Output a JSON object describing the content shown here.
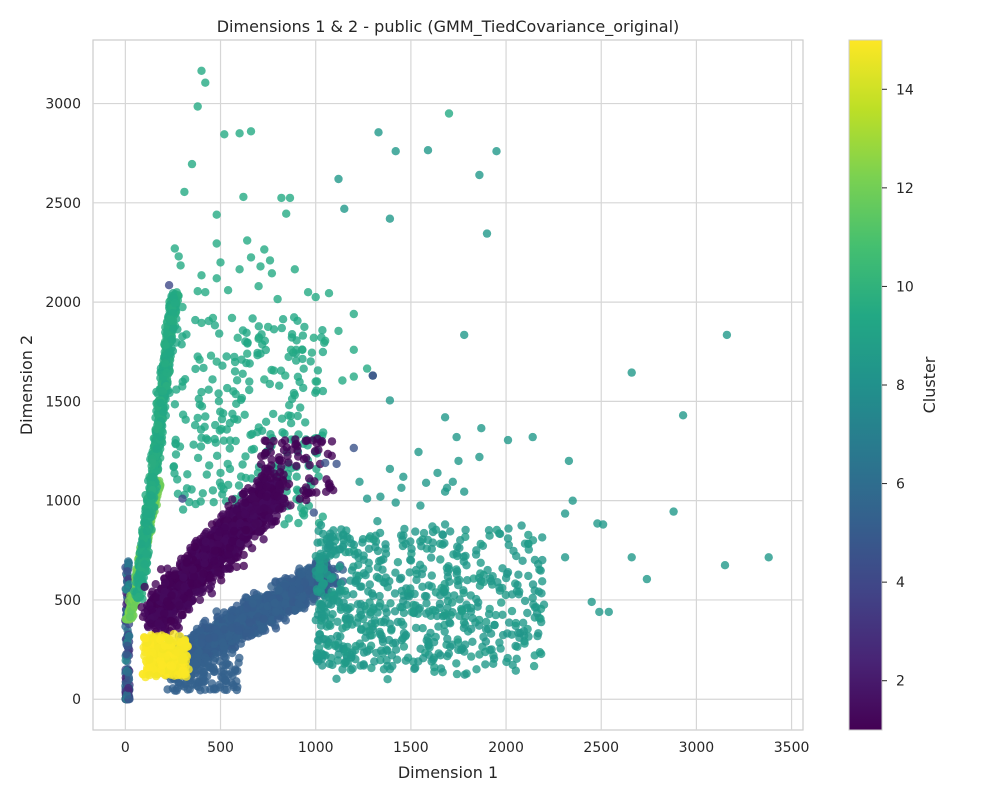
{
  "chart_data": {
    "type": "scatter",
    "title": "Dimensions 1 & 2 - public (GMM_TiedCovariance_original)",
    "xlabel": "Dimension 1",
    "ylabel": "Dimension 2",
    "xlim": [
      -170,
      3560
    ],
    "ylim": [
      -155,
      3320
    ],
    "xticks": [
      0,
      500,
      1000,
      1500,
      2000,
      2500,
      3000,
      3500
    ],
    "yticks": [
      0,
      500,
      1000,
      1500,
      2000,
      2500,
      3000
    ],
    "grid": true,
    "colormap": "viridis",
    "colorbar": {
      "label": "Cluster",
      "range": [
        1,
        15
      ],
      "ticks": [
        2,
        4,
        6,
        8,
        10,
        12,
        14
      ]
    },
    "points": [
      [
        400,
        3165,
        9.5
      ],
      [
        420,
        3105,
        9.5
      ],
      [
        380,
        2985,
        9.5
      ],
      [
        1700,
        2950,
        9.5
      ],
      [
        660,
        2860,
        9.5
      ],
      [
        520,
        2845,
        9.5
      ],
      [
        600,
        2850,
        9.5
      ],
      [
        1330,
        2855,
        8.5
      ],
      [
        1420,
        2760,
        8.5
      ],
      [
        1590,
        2765,
        8.5
      ],
      [
        1950,
        2760,
        8.5
      ],
      [
        1860,
        2640,
        8.5
      ],
      [
        350,
        2695,
        9.5
      ],
      [
        1120,
        2620,
        8.5
      ],
      [
        310,
        2555,
        9.5
      ],
      [
        620,
        2530,
        9.5
      ],
      [
        820,
        2525,
        9.5
      ],
      [
        865,
        2525,
        9.5
      ],
      [
        1150,
        2470,
        8.5
      ],
      [
        480,
        2440,
        9.5
      ],
      [
        845,
        2445,
        9.5
      ],
      [
        1390,
        2420,
        8.5
      ],
      [
        1900,
        2345,
        8.5
      ],
      [
        640,
        2310,
        9.5
      ],
      [
        480,
        2295,
        9.5
      ],
      [
        260,
        2270,
        9.5
      ],
      [
        730,
        2265,
        9.5
      ],
      [
        280,
        2230,
        9.5
      ],
      [
        660,
        2225,
        9.5
      ],
      [
        760,
        2210,
        9.5
      ],
      [
        500,
        2200,
        9.5
      ],
      [
        290,
        2185,
        9.5
      ],
      [
        710,
        2180,
        9.5
      ],
      [
        600,
        2165,
        9.5
      ],
      [
        890,
        2165,
        9.5
      ],
      [
        400,
        2135,
        9.5
      ],
      [
        770,
        2145,
        9.5
      ],
      [
        480,
        2120,
        9.5
      ],
      [
        700,
        2080,
        9.5
      ],
      [
        540,
        2060,
        9.5
      ],
      [
        380,
        2055,
        9.5
      ],
      [
        420,
        2050,
        9.5
      ],
      [
        1070,
        2045,
        9.5
      ],
      [
        960,
        2050,
        9.5
      ],
      [
        1000,
        2025,
        9.5
      ],
      [
        800,
        2015,
        9.5
      ],
      [
        260,
        1995,
        9.5
      ],
      [
        300,
        1975,
        9.5
      ],
      [
        1200,
        1940,
        9.5
      ],
      [
        560,
        1920,
        9.5
      ],
      [
        460,
        1920,
        9.5
      ],
      [
        400,
        1895,
        9.5
      ],
      [
        750,
        1875,
        9.5
      ],
      [
        1120,
        1855,
        9.5
      ],
      [
        590,
        1820,
        9.5
      ],
      [
        990,
        1820,
        9.5
      ],
      [
        700,
        1815,
        9.5
      ],
      [
        1050,
        1805,
        9.5
      ],
      [
        870,
        1760,
        9.5
      ],
      [
        1200,
        1760,
        9.5
      ],
      [
        930,
        1760,
        9.5
      ],
      [
        980,
        1745,
        9.5
      ],
      [
        450,
        1730,
        9.5
      ],
      [
        640,
        1740,
        9.5
      ],
      [
        390,
        1710,
        9.5
      ],
      [
        480,
        1700,
        9.5
      ],
      [
        780,
        1655,
        9.5
      ],
      [
        1270,
        1665,
        9.5
      ],
      [
        1300,
        1630,
        8.5
      ],
      [
        1200,
        1625,
        9.5
      ],
      [
        1140,
        1605,
        9.5
      ],
      [
        1000,
        1600,
        9.5
      ],
      [
        730,
        1610,
        9.5
      ],
      [
        840,
        1630,
        9.5
      ],
      [
        1780,
        1835,
        8.5
      ],
      [
        2660,
        1645,
        8.5
      ],
      [
        3160,
        1835,
        8.5
      ],
      [
        2930,
        1430,
        8.5
      ],
      [
        1390,
        1505,
        8.5
      ],
      [
        1680,
        1420,
        8.5
      ],
      [
        1870,
        1365,
        8.5
      ],
      [
        2010,
        1305,
        8.5
      ],
      [
        2140,
        1320,
        8.5
      ],
      [
        1740,
        1320,
        8.5
      ],
      [
        1540,
        1245,
        8.5
      ],
      [
        1860,
        1220,
        8.5
      ],
      [
        1750,
        1200,
        8.5
      ],
      [
        2330,
        1200,
        8.5
      ],
      [
        1390,
        1160,
        8.5
      ],
      [
        1640,
        1140,
        8.5
      ],
      [
        1720,
        1095,
        8.5
      ],
      [
        1460,
        1120,
        8.5
      ],
      [
        1580,
        1090,
        8.5
      ],
      [
        1230,
        1095,
        8.5
      ],
      [
        1690,
        1065,
        8.5
      ],
      [
        1680,
        1045,
        8.5
      ],
      [
        1780,
        1045,
        8.5
      ],
      [
        1340,
        1020,
        8.5
      ],
      [
        1270,
        1010,
        8.5
      ],
      [
        1450,
        1065,
        8.5
      ],
      [
        2350,
        1000,
        8.5
      ],
      [
        1420,
        990,
        8.5
      ],
      [
        1550,
        975,
        8.5
      ],
      [
        2880,
        945,
        8.5
      ],
      [
        2310,
        935,
        8.5
      ],
      [
        2480,
        885,
        8.5
      ],
      [
        2510,
        880,
        8.5
      ],
      [
        1680,
        880,
        8.5
      ],
      [
        2190,
        815,
        8.5
      ],
      [
        2010,
        810,
        8.5
      ],
      [
        1740,
        735,
        8.5
      ],
      [
        2310,
        715,
        8.5
      ],
      [
        2660,
        715,
        8.5
      ],
      [
        3380,
        715,
        8.5
      ],
      [
        3150,
        675,
        8.5
      ],
      [
        2740,
        605,
        8.5
      ],
      [
        2540,
        440,
        8.5
      ],
      [
        2490,
        440,
        8.5
      ],
      [
        2450,
        490,
        8.5
      ],
      [
        2140,
        510,
        8.5
      ],
      [
        2100,
        495,
        8.5
      ],
      [
        2060,
        575,
        8.5
      ],
      [
        2000,
        610,
        8.5
      ],
      [
        2030,
        325,
        8.5
      ],
      [
        2090,
        385,
        8.5
      ],
      [
        1200,
        1265,
        4.5
      ],
      [
        1300,
        1630,
        4.0
      ],
      [
        230,
        2085,
        4.0
      ],
      [
        1050,
        1190,
        4.5
      ],
      [
        1110,
        1185,
        4.5
      ],
      [
        990,
        940,
        4.5
      ],
      [
        300,
        1010,
        4.0
      ]
    ],
    "clusters": [
      {
        "id": 1,
        "region": "x 150-1100, y 400-1400, dense, dark purple"
      },
      {
        "id": 5,
        "region": "x 200-1100, y 50-800, dense, blue"
      },
      {
        "id": 8,
        "region": "x 1000-2200, y 150-1000, teal"
      },
      {
        "id": 9,
        "region": "x 50-250, y 600-2000, green-teal"
      },
      {
        "id": 12,
        "region": "x 50-200, y 450-1100, light green"
      },
      {
        "id": 15,
        "region": "x 100-350, y 100-330, yellow"
      },
      {
        "id": 7,
        "region": "x 0-40, y 0-250, near origin"
      }
    ]
  }
}
